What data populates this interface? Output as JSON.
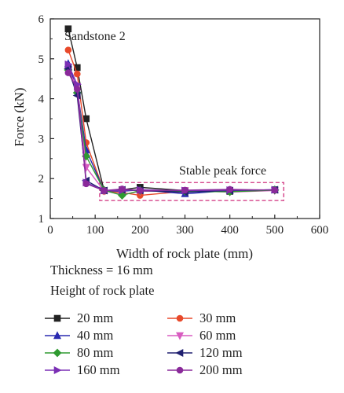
{
  "chart_data": {
    "type": "line",
    "title": "",
    "xlabel": "Width of rock plate (mm)",
    "ylabel": "Force (kN)",
    "xlim": [
      0,
      600
    ],
    "ylim": [
      1,
      6
    ],
    "xticks": [
      0,
      100,
      200,
      300,
      400,
      500,
      600
    ],
    "yticks": [
      1,
      2,
      3,
      4,
      5,
      6
    ],
    "x": [
      40,
      60,
      80,
      120,
      160,
      200,
      300,
      400,
      500
    ],
    "grid": false,
    "annotations": {
      "sample": "Sandstone 2",
      "region": "Stable peak force"
    },
    "series": [
      {
        "name": "20 mm",
        "color": "#222222",
        "marker": "square",
        "values": [
          5.75,
          4.78,
          3.5,
          1.7,
          1.72,
          1.78,
          1.7,
          1.68,
          1.72
        ]
      },
      {
        "name": "30 mm",
        "color": "#e8492a",
        "marker": "circle",
        "values": [
          5.22,
          4.62,
          2.9,
          1.68,
          1.65,
          1.58,
          1.68,
          1.7,
          1.71
        ]
      },
      {
        "name": "40 mm",
        "color": "#2a2ab0",
        "marker": "triangle-up",
        "values": [
          4.88,
          4.22,
          2.72,
          1.7,
          1.68,
          1.72,
          1.62,
          1.7,
          1.72
        ]
      },
      {
        "name": "60 mm",
        "color": "#d85cc0",
        "marker": "triangle-down",
        "values": [
          4.7,
          4.3,
          2.28,
          1.69,
          1.6,
          1.68,
          1.7,
          1.66,
          1.7
        ]
      },
      {
        "name": "80 mm",
        "color": "#2e9a30",
        "marker": "diamond",
        "values": [
          4.72,
          4.15,
          2.56,
          1.71,
          1.58,
          1.7,
          1.68,
          1.67,
          1.71
        ]
      },
      {
        "name": "120 mm",
        "color": "#202070",
        "marker": "triangle-left",
        "values": [
          4.75,
          4.08,
          1.95,
          1.7,
          1.72,
          1.7,
          1.66,
          1.7,
          1.72
        ]
      },
      {
        "name": "160 mm",
        "color": "#7b2fb5",
        "marker": "triangle-right",
        "values": [
          4.86,
          4.36,
          1.9,
          1.7,
          1.7,
          1.72,
          1.7,
          1.71,
          1.72
        ]
      },
      {
        "name": "200 mm",
        "color": "#8a2a9a",
        "marker": "circle",
        "values": [
          4.65,
          4.24,
          1.87,
          1.7,
          1.74,
          1.7,
          1.71,
          1.73,
          1.71
        ]
      }
    ]
  },
  "caption": {
    "thickness": "Thickness = 16 mm",
    "legend_title": "Height of rock plate"
  },
  "colors": {
    "axis": "#222222",
    "region_border": "#d0317e"
  }
}
